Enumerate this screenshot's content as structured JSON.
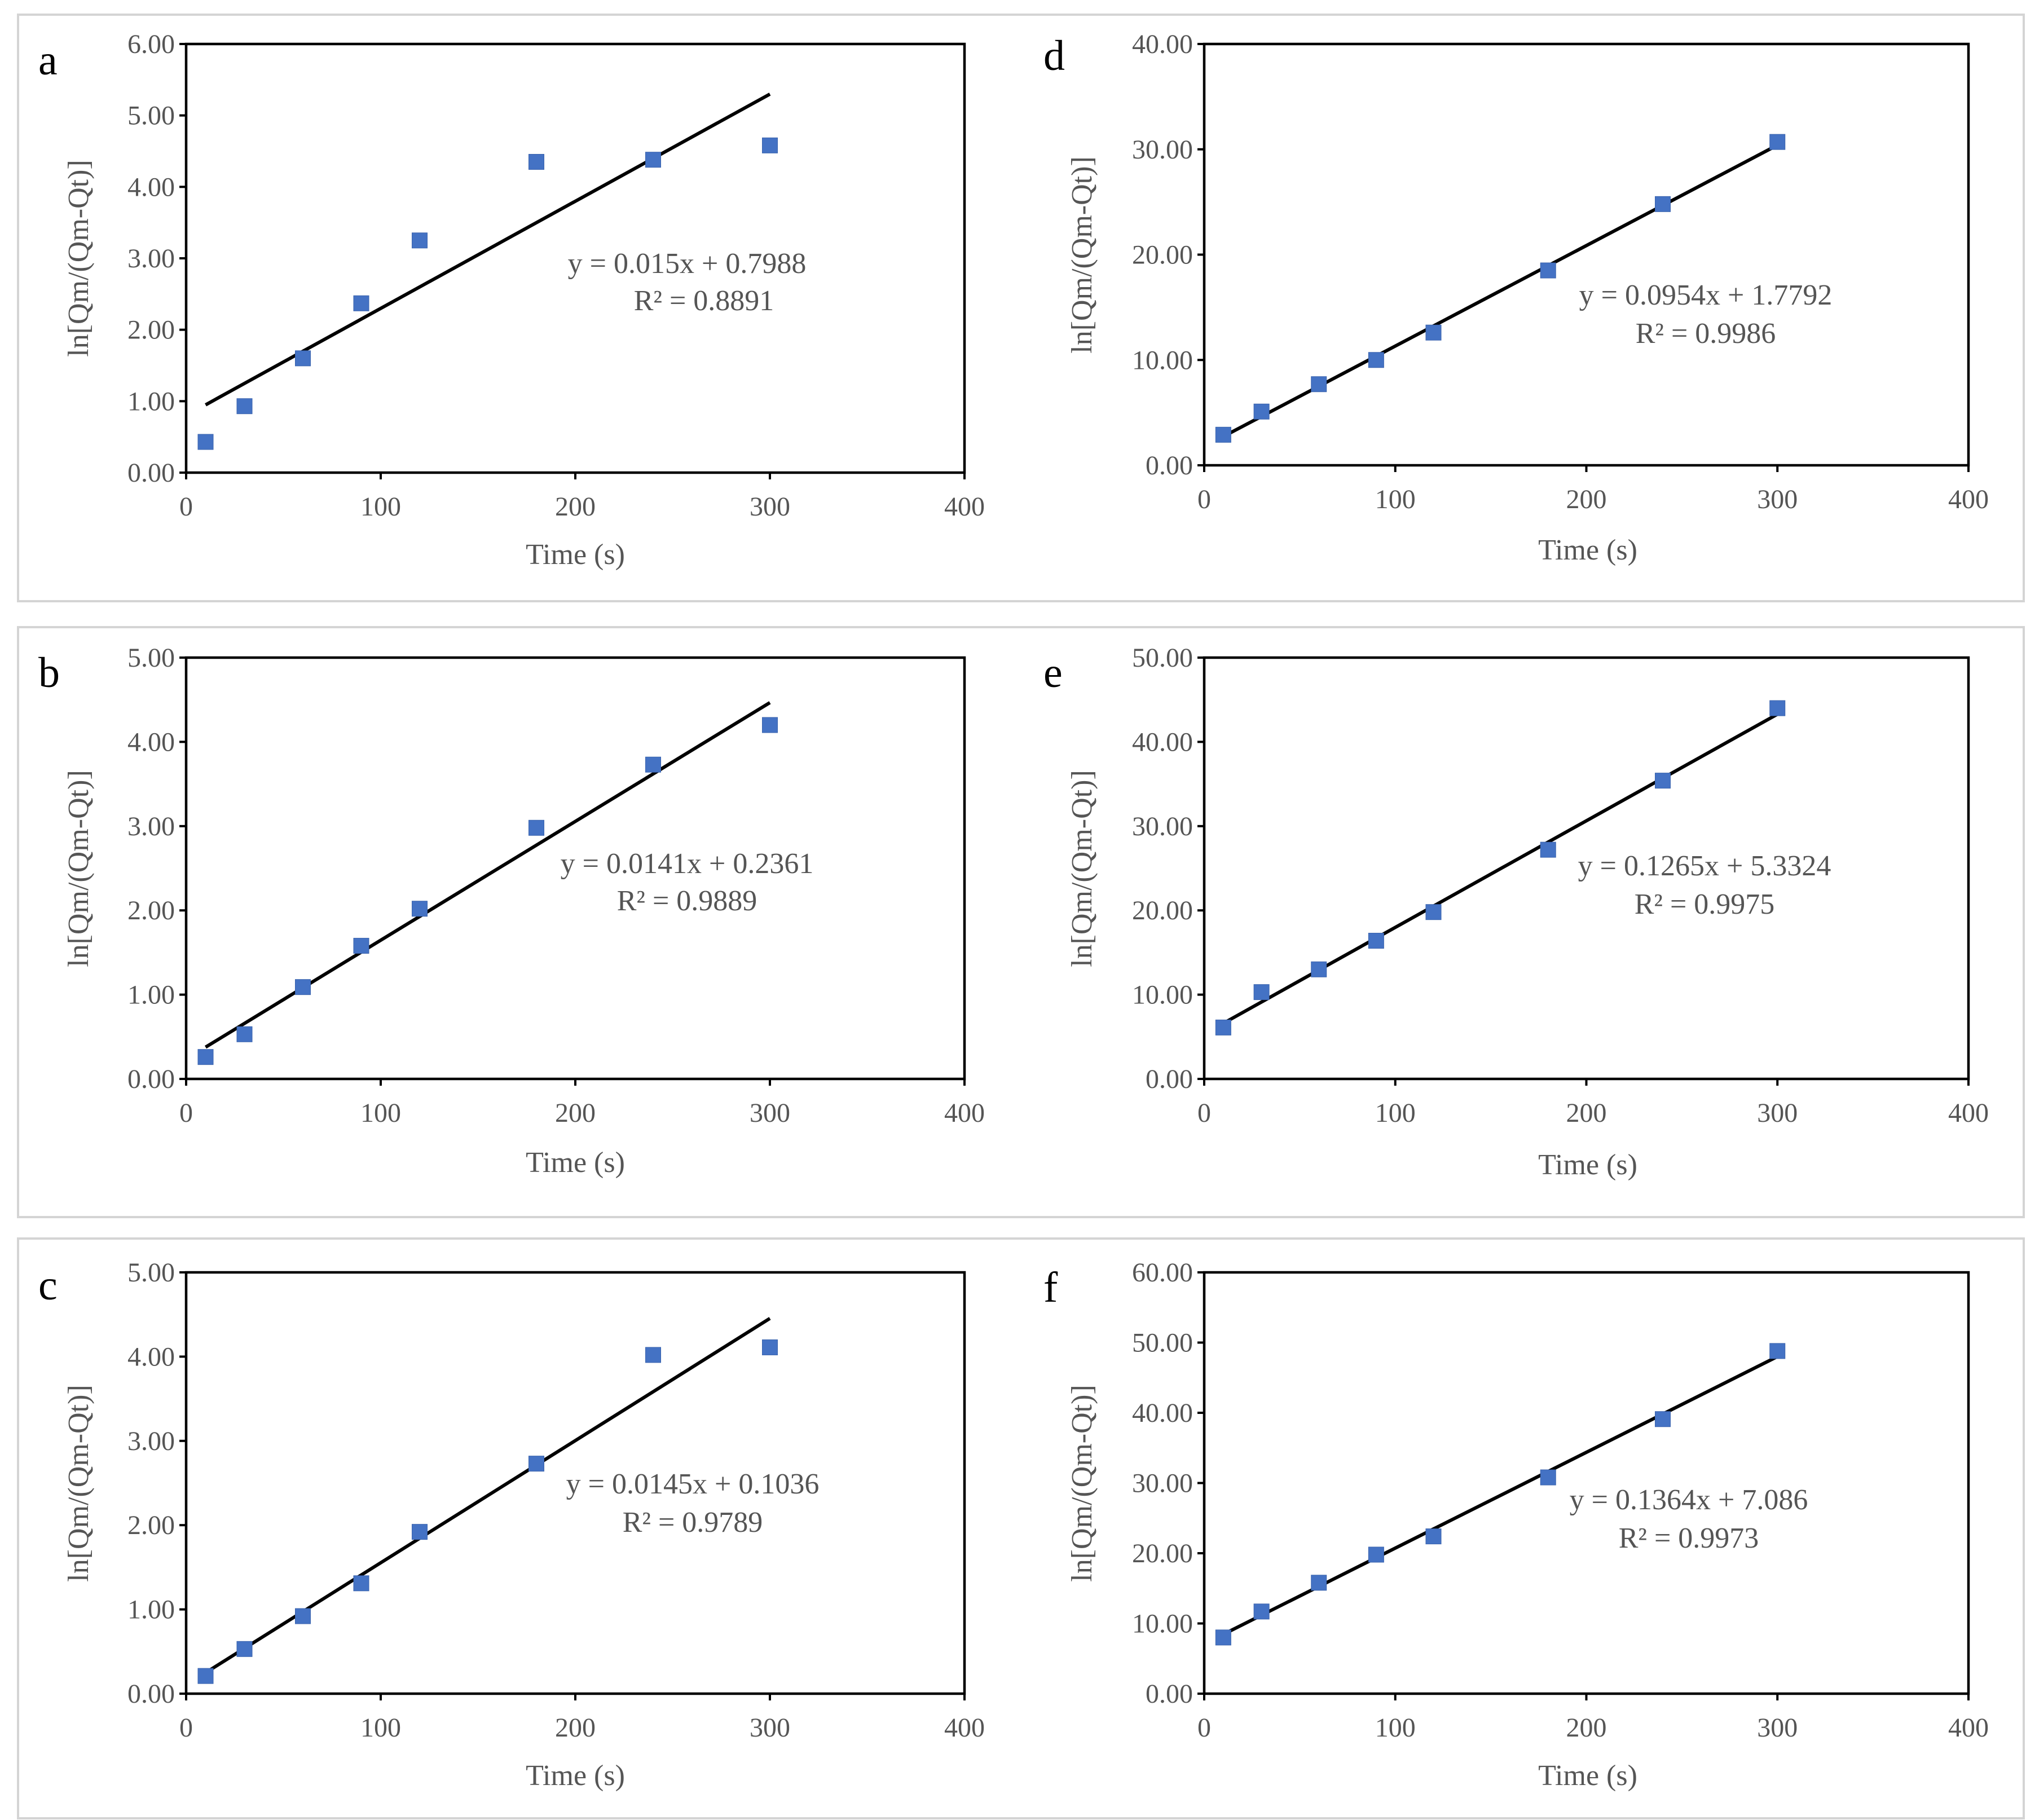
{
  "chart_data": [
    {
      "type": "scatter",
      "panel_label": "a",
      "x": [
        10,
        30,
        60,
        90,
        120,
        180,
        240,
        300
      ],
      "y": [
        0.43,
        0.93,
        1.6,
        2.37,
        3.25,
        4.35,
        4.38,
        4.58
      ],
      "trendline": {
        "slope": 0.015,
        "intercept": 0.7988
      },
      "equation": "y = 0.015x + 0.7988",
      "r2": "R² = 0.8891",
      "xlabel": "Time (s)",
      "ylabel": "ln[Qm/(Qm-Qt)]",
      "xlim": [
        0,
        400
      ],
      "ylim": [
        0,
        6
      ],
      "xticks": [
        0,
        100,
        200,
        300,
        400
      ],
      "xtick_labels": [
        "0",
        "100",
        "200",
        "300",
        "400"
      ],
      "yticks": [
        0,
        1,
        2,
        3,
        4,
        5,
        6
      ],
      "ytick_labels": [
        "0.00",
        "1.00",
        "2.00",
        "3.00",
        "4.00",
        "5.00",
        "6.00"
      ],
      "marker_color": "#4472c4",
      "line_color": "#000000"
    },
    {
      "type": "scatter",
      "panel_label": "b",
      "x": [
        10,
        30,
        60,
        90,
        120,
        180,
        240,
        300
      ],
      "y": [
        0.26,
        0.53,
        1.09,
        1.58,
        2.02,
        2.98,
        3.73,
        4.2
      ],
      "trendline": {
        "slope": 0.0141,
        "intercept": 0.2361
      },
      "equation": "y = 0.0141x + 0.2361",
      "r2": "R² = 0.9889",
      "xlabel": "Time (s)",
      "ylabel": "ln[Qm/(Qm-Qt)]",
      "xlim": [
        0,
        400
      ],
      "ylim": [
        0,
        5
      ],
      "xticks": [
        0,
        100,
        200,
        300,
        400
      ],
      "xtick_labels": [
        "0",
        "100",
        "200",
        "300",
        "400"
      ],
      "yticks": [
        0,
        1,
        2,
        3,
        4,
        5
      ],
      "ytick_labels": [
        "0.00",
        "1.00",
        "2.00",
        "3.00",
        "4.00",
        "5.00"
      ],
      "marker_color": "#4472c4",
      "line_color": "#000000"
    },
    {
      "type": "scatter",
      "panel_label": "c",
      "x": [
        10,
        30,
        60,
        90,
        120,
        180,
        240,
        300
      ],
      "y": [
        0.21,
        0.53,
        0.92,
        1.31,
        1.92,
        2.73,
        4.02,
        4.11
      ],
      "trendline": {
        "slope": 0.0145,
        "intercept": 0.1036
      },
      "equation": "y = 0.0145x + 0.1036",
      "r2": "R² = 0.9789",
      "xlabel": "Time (s)",
      "ylabel": "ln[Qm/(Qm-Qt)]",
      "xlim": [
        0,
        400
      ],
      "ylim": [
        0,
        5
      ],
      "xticks": [
        0,
        100,
        200,
        300,
        400
      ],
      "xtick_labels": [
        "0",
        "100",
        "200",
        "300",
        "400"
      ],
      "yticks": [
        0,
        1,
        2,
        3,
        4,
        5
      ],
      "ytick_labels": [
        "0.00",
        "1.00",
        "2.00",
        "3.00",
        "4.00",
        "5.00"
      ],
      "marker_color": "#4472c4",
      "line_color": "#000000"
    },
    {
      "type": "scatter",
      "panel_label": "d",
      "x": [
        10,
        30,
        60,
        90,
        120,
        180,
        240,
        300
      ],
      "y": [
        2.9,
        5.1,
        7.7,
        10.0,
        12.6,
        18.5,
        24.8,
        30.7
      ],
      "trendline": {
        "slope": 0.0954,
        "intercept": 1.7792
      },
      "equation": "y = 0.0954x + 1.7792",
      "r2": "R² = 0.9986",
      "xlabel": "Time (s)",
      "ylabel": "ln[Qm/(Qm-Qt)]",
      "xlim": [
        0,
        400
      ],
      "ylim": [
        0,
        40
      ],
      "xticks": [
        0,
        100,
        200,
        300,
        400
      ],
      "xtick_labels": [
        "0",
        "100",
        "200",
        "300",
        "400"
      ],
      "yticks": [
        0,
        10,
        20,
        30,
        40
      ],
      "ytick_labels": [
        "0.00",
        "10.00",
        "20.00",
        "30.00",
        "40.00"
      ],
      "marker_color": "#4472c4",
      "line_color": "#000000"
    },
    {
      "type": "scatter",
      "panel_label": "e",
      "x": [
        10,
        30,
        60,
        90,
        120,
        180,
        240,
        300
      ],
      "y": [
        6.1,
        10.3,
        13.0,
        16.4,
        19.8,
        27.2,
        35.4,
        44.0
      ],
      "trendline": {
        "slope": 0.1265,
        "intercept": 5.3324
      },
      "equation": "y = 0.1265x + 5.3324",
      "r2": "R² = 0.9975",
      "xlabel": "Time (s)",
      "ylabel": "ln[Qm/(Qm-Qt)]",
      "xlim": [
        0,
        400
      ],
      "ylim": [
        0,
        50
      ],
      "xticks": [
        0,
        100,
        200,
        300,
        400
      ],
      "xtick_labels": [
        "0",
        "100",
        "200",
        "300",
        "400"
      ],
      "yticks": [
        0,
        10,
        20,
        30,
        40,
        50
      ],
      "ytick_labels": [
        "0.00",
        "10.00",
        "20.00",
        "30.00",
        "40.00",
        "50.00"
      ],
      "marker_color": "#4472c4",
      "line_color": "#000000"
    },
    {
      "type": "scatter",
      "panel_label": "f",
      "x": [
        10,
        30,
        60,
        90,
        120,
        180,
        240,
        300
      ],
      "y": [
        8.0,
        11.7,
        15.8,
        19.8,
        22.4,
        30.8,
        39.1,
        48.8
      ],
      "trendline": {
        "slope": 0.1364,
        "intercept": 7.086
      },
      "equation": "y = 0.1364x + 7.086",
      "r2": "R² = 0.9973",
      "xlabel": "Time (s)",
      "ylabel": "ln[Qm/(Qm-Qt)]",
      "xlim": [
        0,
        400
      ],
      "ylim": [
        0,
        60
      ],
      "xticks": [
        0,
        100,
        200,
        300,
        400
      ],
      "xtick_labels": [
        "0",
        "100",
        "200",
        "300",
        "400"
      ],
      "yticks": [
        0,
        10,
        20,
        30,
        40,
        50,
        60
      ],
      "ytick_labels": [
        "0.00",
        "10.00",
        "20.00",
        "30.00",
        "40.00",
        "50.00",
        "60.00"
      ],
      "marker_color": "#4472c4",
      "line_color": "#000000"
    }
  ]
}
